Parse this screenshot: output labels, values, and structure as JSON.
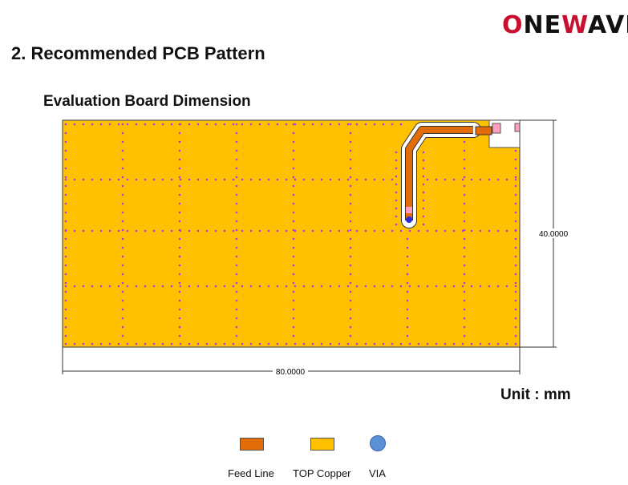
{
  "header": {
    "logo_text": "ONEWAVE",
    "section_title": "2.  Recommended PCB Pattern",
    "subtitle": "Evaluation Board Dimension"
  },
  "drawing": {
    "width_label": "80.0000",
    "height_label": "40.0000",
    "unit_label": "Unit : mm"
  },
  "legend": {
    "feed_line": "Feed Line",
    "top_copper": "TOP Copper",
    "via": "VIA"
  },
  "colors": {
    "copper": "#FFC000",
    "feed_line": "#E36C0A",
    "via_dots": "#B23AE0",
    "via": "#5B8FD6",
    "logo_red": "#C8102E"
  }
}
